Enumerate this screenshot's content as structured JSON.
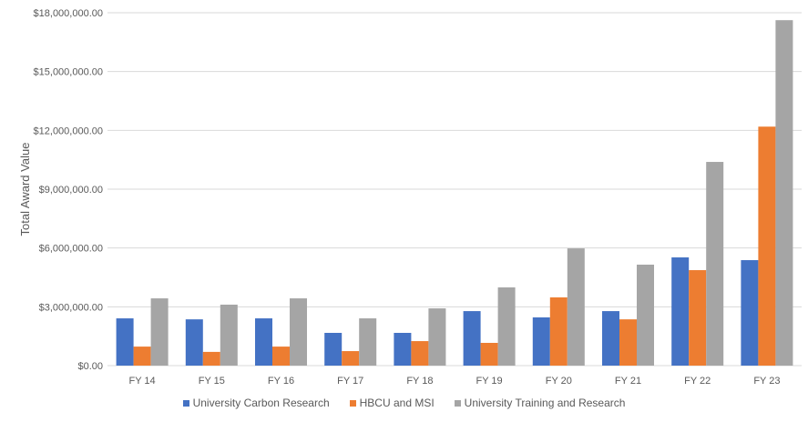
{
  "chart_data": {
    "type": "bar",
    "title": "",
    "xlabel": "",
    "ylabel": "Total Award Value",
    "ylim": [
      0,
      18000000
    ],
    "yticks": [
      0,
      3000000,
      6000000,
      9000000,
      12000000,
      15000000,
      18000000
    ],
    "ytick_labels": [
      "$0.00",
      "$3,000,000.00",
      "$6,000,000.00",
      "$9,000,000.00",
      "$12,000,000.00",
      "$15,000,000.00",
      "$18,000,000.00"
    ],
    "grid": true,
    "legend_position": "bottom",
    "categories": [
      "FY 14",
      "FY 15",
      "FY 16",
      "FY 17",
      "FY 18",
      "FY 19",
      "FY 20",
      "FY 21",
      "FY 22",
      "FY 23"
    ],
    "series": [
      {
        "name": "University Carbon Research",
        "color": "#4472C4",
        "values": [
          2410000,
          2360000,
          2410000,
          1670000,
          1670000,
          2780000,
          2460000,
          2780000,
          5520000,
          5380000
        ]
      },
      {
        "name": "HBCU and MSI",
        "color": "#ED7D31",
        "values": [
          970000,
          700000,
          970000,
          740000,
          1250000,
          1160000,
          3480000,
          2360000,
          4870000,
          12190000
        ]
      },
      {
        "name": "University Training and Research",
        "color": "#A5A5A5",
        "values": [
          3430000,
          3110000,
          3430000,
          2410000,
          2920000,
          3990000,
          5980000,
          5150000,
          10390000,
          17620000
        ]
      }
    ]
  }
}
